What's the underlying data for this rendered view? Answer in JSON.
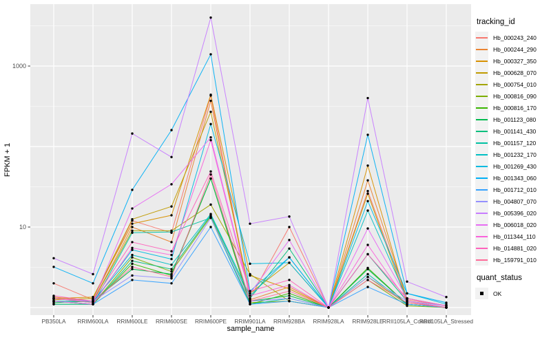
{
  "chart_data": {
    "type": "line",
    "title": "",
    "xlabel": "sample_name",
    "ylabel": "FPKM + 1",
    "y_scale": "log10",
    "grid": true,
    "legend_position": "right",
    "panel_background": "#EBEBEB",
    "grid_color": "#FFFFFF",
    "point_color": "#000000",
    "axis_text_color": "#4D4D4D",
    "y_tick_labels": [
      {
        "value": 1000,
        "label": "1000"
      },
      {
        "value": 10,
        "label": "10"
      }
    ],
    "y_major_gridlines": [
      1,
      10,
      100,
      1000
    ],
    "y_minor_gridlines": [
      3.162,
      31.62,
      316.2,
      3162
    ],
    "ylim": [
      0.8,
      5900
    ],
    "categories": [
      "PB350LA",
      "RRIM600LA",
      "RRIM600LE",
      "RRIM600SE",
      "RRIM600PE",
      "RRIM901LA",
      "RRIM928BA",
      "RRIM928LA",
      "RRIM928LE",
      "RRII105LA_Control",
      "RRII105LA_Stressed"
    ],
    "series": [
      {
        "name": "Hb_000243_240",
        "color": "#F8766D",
        "values": [
          2.0,
          1.25,
          12,
          8.5,
          430,
          1.3,
          10,
          1,
          28,
          1.25,
          1.05
        ]
      },
      {
        "name": "Hb_000244_290",
        "color": "#EA8331",
        "values": [
          1.35,
          1.2,
          10,
          6.5,
          370,
          1.25,
          1.8,
          1,
          38,
          1.3,
          1.05
        ]
      },
      {
        "name": "Hb_000327_350",
        "color": "#D89000",
        "values": [
          1.3,
          1.35,
          11,
          14,
          440,
          2.5,
          1.7,
          1,
          58,
          1.2,
          1.0
        ]
      },
      {
        "name": "Hb_000628_070",
        "color": "#C09B00",
        "values": [
          1.25,
          1.3,
          12.5,
          18,
          270,
          1.5,
          3.6,
          1,
          26,
          1.15,
          1.0
        ]
      },
      {
        "name": "Hb_000754_010",
        "color": "#A3A500",
        "values": [
          1.3,
          1.2,
          9,
          9,
          19,
          2.6,
          1.2,
          1,
          2.4,
          1.1,
          1.0
        ]
      },
      {
        "name": "Hb_000816_090",
        "color": "#7CAE00",
        "values": [
          1.1,
          1.1,
          4.2,
          2.8,
          13.5,
          1.15,
          1.2,
          1,
          2.2,
          1.05,
          1.0
        ]
      },
      {
        "name": "Hb_000816_170",
        "color": "#39B600",
        "values": [
          1.2,
          1.1,
          3.5,
          2.5,
          40,
          1.1,
          1.5,
          1,
          3.1,
          1.1,
          1.0
        ]
      },
      {
        "name": "Hb_001123_080",
        "color": "#00BB4E",
        "values": [
          1.15,
          1.2,
          3.0,
          2.6,
          40,
          1.2,
          1.4,
          1,
          3.0,
          1.1,
          1.0
        ]
      },
      {
        "name": "Hb_001141_430",
        "color": "#00BF7D",
        "values": [
          1.2,
          1.1,
          3.8,
          3.0,
          14,
          1.3,
          5.4,
          1,
          4.6,
          1.2,
          1.0
        ]
      },
      {
        "name": "Hb_001157_120",
        "color": "#00C1A3",
        "values": [
          1.1,
          1.1,
          8.5,
          8.7,
          13,
          1.1,
          1.3,
          1,
          2.6,
          1.1,
          1.0
        ]
      },
      {
        "name": "Hb_001232_170",
        "color": "#00BFC4",
        "values": [
          1.2,
          1.2,
          4.5,
          3.4,
          14.5,
          1.4,
          4.2,
          1,
          16,
          1.3,
          1.05
        ]
      },
      {
        "name": "Hb_001269_430",
        "color": "#00BAE0",
        "values": [
          1.3,
          1.15,
          5.2,
          4.0,
          190,
          3.5,
          3.6,
          1,
          21,
          1.5,
          1.1
        ]
      },
      {
        "name": "Hb_001343_060",
        "color": "#00B0F6",
        "values": [
          3.2,
          2.0,
          29,
          160,
          1400,
          1.6,
          4.2,
          1,
          140,
          1.5,
          1.15
        ]
      },
      {
        "name": "Hb_001712_010",
        "color": "#35A2FF",
        "values": [
          1.2,
          1.1,
          2.2,
          2.0,
          10,
          1.1,
          1.2,
          1,
          1.8,
          1.1,
          1.0
        ]
      },
      {
        "name": "Hb_004807_070",
        "color": "#9590FF",
        "values": [
          1.3,
          1.2,
          2.5,
          2.3,
          13,
          1.2,
          1.3,
          1,
          2.4,
          1.2,
          1.05
        ]
      },
      {
        "name": "Hb_005396_020",
        "color": "#C77CFF",
        "values": [
          4.1,
          2.6,
          145,
          74,
          4000,
          11,
          13.5,
          1,
          400,
          2.1,
          1.35
        ]
      },
      {
        "name": "Hb_006018_020",
        "color": "#E76BF3",
        "values": [
          1.3,
          1.2,
          17,
          34,
          130,
          1.5,
          6.9,
          1,
          9.6,
          1.3,
          1.05
        ]
      },
      {
        "name": "Hb_011344_110",
        "color": "#FA62DB",
        "values": [
          1.2,
          1.1,
          5.5,
          4.5,
          120,
          1.4,
          1.9,
          1,
          6.0,
          1.2,
          1.0
        ]
      },
      {
        "name": "Hb_014881_020",
        "color": "#FF62BC",
        "values": [
          1.4,
          1.2,
          6.5,
          5.0,
          49,
          1.6,
          2.2,
          1,
          4.6,
          1.3,
          1.05
        ]
      },
      {
        "name": "Hb_159791_010",
        "color": "#FF6A98",
        "values": [
          1.3,
          1.15,
          3.2,
          2.4,
          45,
          1.2,
          1.6,
          1,
          2.2,
          1.15,
          1.0
        ]
      }
    ],
    "legend": {
      "tracking_title": "tracking_id",
      "quant_title": "quant_status",
      "quant_items": [
        {
          "label": "OK",
          "marker": "black-square"
        }
      ]
    }
  }
}
